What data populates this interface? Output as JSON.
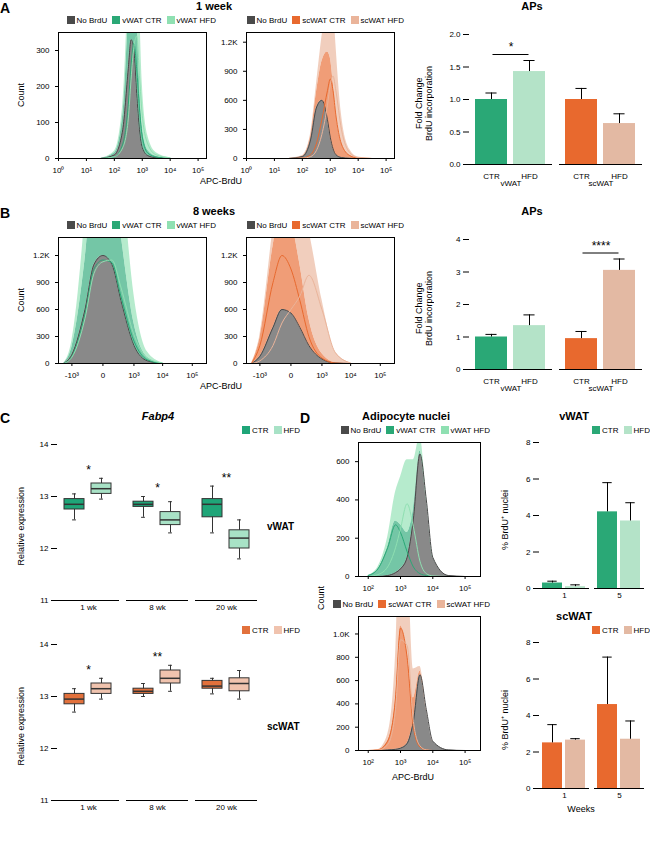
{
  "panels": [
    {
      "label": "A",
      "title": "1 week",
      "xlabel": "APC-BrdU",
      "ylabel": "Count"
    },
    {
      "label": "B",
      "title": "8 weeks",
      "xlabel": "APC-BrdU",
      "ylabel": "Count"
    },
    {
      "label": "C",
      "title": "Fabp4"
    },
    {
      "label": "D",
      "title": "Adipocyte nuclei",
      "xlabel": "APC-BrdU",
      "ylabel": "Count"
    }
  ],
  "chart_data": [
    {
      "panel": "A",
      "type": "area",
      "log": "x",
      "legend": "top-right",
      "x": [
        32,
        100,
        200,
        316,
        398,
        501,
        631,
        794,
        1000,
        1585,
        3162,
        10000
      ],
      "xlim": [
        1,
        200000
      ],
      "xticks": [
        {
          "value": 1,
          "label": "10⁰"
        },
        {
          "value": 10,
          "label": "10¹"
        },
        {
          "value": 100,
          "label": "10²"
        },
        {
          "value": 1000,
          "label": "10³"
        },
        {
          "value": 10000,
          "label": "10⁴"
        },
        {
          "value": 100000,
          "label": "10⁵"
        }
      ],
      "ylim": [
        0,
        350
      ],
      "yticks": [
        0,
        100,
        200,
        300
      ],
      "series": [
        {
          "name": "No BrdU",
          "color": "#4a4a4a",
          "values": [
            0,
            10,
            80,
            250,
            330,
            300,
            180,
            80,
            30,
            8,
            2,
            0
          ]
        },
        {
          "name": "vWAT CTR",
          "color": "#2aa876",
          "values": [
            0,
            5,
            40,
            150,
            260,
            320,
            250,
            140,
            60,
            15,
            4,
            0
          ]
        },
        {
          "name": "vWAT HFD",
          "color": "#8fe0b2",
          "values": [
            0,
            5,
            30,
            110,
            220,
            310,
            340,
            230,
            120,
            40,
            10,
            2
          ]
        }
      ]
    },
    {
      "panel": "A",
      "type": "area",
      "log": "x",
      "legend": "top-right",
      "x": [
        32,
        100,
        200,
        316,
        501,
        794,
        1000,
        1259,
        1585,
        2512,
        5012,
        10000,
        31623
      ],
      "xlim": [
        1,
        200000
      ],
      "xticks": [
        {
          "value": 1,
          "label": "10⁰"
        },
        {
          "value": 10,
          "label": "10¹"
        },
        {
          "value": 100,
          "label": "10²"
        },
        {
          "value": 1000,
          "label": "10³"
        },
        {
          "value": 10000,
          "label": "10⁴"
        },
        {
          "value": 100000,
          "label": "10⁵"
        }
      ],
      "ylim": [
        0,
        1300
      ],
      "yticks": [
        0,
        300,
        600,
        900,
        {
          "value": 1200,
          "label": "1.2K"
        }
      ],
      "series": [
        {
          "name": "No BrdU",
          "color": "#4a4a4a",
          "values": [
            0,
            20,
            200,
            520,
            600,
            400,
            220,
            100,
            40,
            10,
            2,
            0,
            0
          ]
        },
        {
          "name": "scWAT CTR",
          "color": "#e8692e",
          "values": [
            0,
            5,
            40,
            150,
            400,
            700,
            820,
            700,
            450,
            150,
            30,
            5,
            0
          ]
        },
        {
          "name": "scWAT HFD",
          "color": "#eab49a",
          "values": [
            0,
            3,
            20,
            80,
            250,
            550,
            760,
            850,
            700,
            300,
            60,
            10,
            0
          ]
        }
      ]
    },
    {
      "panel": "A",
      "type": "bar",
      "title": "APs",
      "ylabel": "Fold Change\nBrdU incorporation",
      "categories": [
        "CTR",
        "HFD",
        "CTR",
        "HFD"
      ],
      "groups": [
        "vWAT",
        "vWAT",
        "scWAT",
        "scWAT"
      ],
      "values": [
        1.0,
        1.43,
        1.0,
        0.63
      ],
      "errors": [
        0.1,
        0.17,
        0.17,
        0.15
      ],
      "colors": [
        "#2aa876",
        "#b4e3c8",
        "#e8692e",
        "#e3b9a3"
      ],
      "ylim": [
        0,
        2
      ],
      "yticks": [
        {
          "value": 0,
          "label": "0.0"
        },
        {
          "value": 0.5,
          "label": "0.5"
        },
        {
          "value": 1,
          "label": "1.0"
        },
        {
          "value": 1.5,
          "label": "1.5"
        },
        {
          "value": 2,
          "label": "2.0"
        }
      ],
      "annotations": [
        {
          "group": "vWAT",
          "text": "*"
        }
      ]
    },
    {
      "panel": "B",
      "type": "area",
      "log": "x",
      "legend": "top-right",
      "x": [
        -2000,
        -1000,
        -300,
        -100,
        0,
        100,
        300,
        1000,
        3000,
        10000
      ],
      "xlim": [
        -3000,
        300000
      ],
      "xticks": [
        {
          "value": -1000,
          "label": "-10³"
        },
        0,
        {
          "value": 1000,
          "label": "10³"
        },
        {
          "value": 10000,
          "label": "10⁴"
        },
        {
          "value": 100000,
          "label": "10⁵"
        }
      ],
      "ylim": [
        0,
        1400
      ],
      "yticks": [
        0,
        300,
        600,
        900,
        {
          "value": 1200,
          "label": "1.2K"
        }
      ],
      "series": [
        {
          "name": "No BrdU",
          "color": "#4a4a4a",
          "values": [
            0,
            100,
            600,
            1100,
            1200,
            1100,
            700,
            200,
            30,
            0
          ]
        },
        {
          "name": "vWAT CTR",
          "color": "#2aa876",
          "values": [
            0,
            80,
            550,
            1050,
            1150,
            1120,
            750,
            250,
            40,
            0
          ]
        },
        {
          "name": "vWAT HFD",
          "color": "#8fe0b2",
          "values": [
            0,
            70,
            500,
            1000,
            1130,
            1150,
            850,
            320,
            60,
            5
          ]
        }
      ]
    },
    {
      "panel": "B",
      "type": "area",
      "log": "x",
      "legend": "top-right",
      "x": [
        -2000,
        -1000,
        -300,
        -100,
        0,
        100,
        300,
        1000,
        3000,
        10000
      ],
      "xlim": [
        -3000,
        300000
      ],
      "xticks": [
        {
          "value": -1000,
          "label": "-10³"
        },
        0,
        {
          "value": 1000,
          "label": "10³"
        },
        {
          "value": 10000,
          "label": "10⁴"
        },
        {
          "value": 100000,
          "label": "10⁵"
        }
      ],
      "ylim": [
        0,
        1400
      ],
      "yticks": [
        0,
        300,
        600,
        900,
        {
          "value": 1200,
          "label": "1.2K"
        }
      ],
      "series": [
        {
          "name": "No BrdU",
          "color": "#4a4a4a",
          "values": [
            0,
            80,
            400,
            600,
            560,
            400,
            200,
            50,
            5,
            0
          ]
        },
        {
          "name": "scWAT CTR",
          "color": "#e8692e",
          "values": [
            0,
            200,
            900,
            1200,
            1050,
            700,
            300,
            60,
            5,
            0
          ]
        },
        {
          "name": "scWAT HFD",
          "color": "#eab49a",
          "values": [
            0,
            30,
            200,
            450,
            600,
            750,
            980,
            600,
            120,
            5
          ]
        }
      ]
    },
    {
      "panel": "B",
      "type": "bar",
      "title": "APs",
      "ylabel": "Fold Change\nBrdU incorporation",
      "categories": [
        "CTR",
        "HFD",
        "CTR",
        "HFD"
      ],
      "groups": [
        "vWAT",
        "vWAT",
        "scWAT",
        "scWAT"
      ],
      "values": [
        1.0,
        1.35,
        0.95,
        3.05
      ],
      "errors": [
        0.08,
        0.33,
        0.22,
        0.35
      ],
      "colors": [
        "#2aa876",
        "#b4e3c8",
        "#e8692e",
        "#e3b9a3"
      ],
      "ylim": [
        0,
        4
      ],
      "yticks": [
        0,
        1,
        2,
        3,
        4
      ],
      "annotations": [
        {
          "group": "scWAT",
          "text": "****"
        }
      ]
    },
    {
      "panel": "C",
      "type": "box",
      "title": "vWAT",
      "ylabel": "Relative expression",
      "legend": "top-right",
      "categories": [
        "1 wk",
        "8 wk",
        "20 wk"
      ],
      "ylim": [
        11,
        14
      ],
      "yticks": [
        11,
        12,
        13,
        14
      ],
      "series": [
        {
          "name": "CTR",
          "color": "#1fa578",
          "boxes": [
            [
              12.55,
              12.75,
              12.85,
              12.95,
              13.05
            ],
            [
              12.6,
              12.8,
              12.85,
              12.9,
              13.0
            ],
            [
              12.3,
              12.6,
              12.85,
              12.95,
              13.2
            ]
          ]
        },
        {
          "name": "HFD",
          "color": "#a8e2c6",
          "boxes": [
            [
              12.95,
              13.05,
              13.15,
              13.25,
              13.35
            ],
            [
              12.3,
              12.45,
              12.55,
              12.7,
              12.9
            ],
            [
              11.8,
              12.0,
              12.2,
              12.35,
              12.55
            ]
          ]
        }
      ],
      "annotations": [
        {
          "category": "1 wk",
          "text": "*"
        },
        {
          "category": "8 wk",
          "text": "*"
        },
        {
          "category": "20 wk",
          "text": "**"
        }
      ]
    },
    {
      "panel": "C",
      "type": "box",
      "title": "scWAT",
      "ylabel": "Relative expression",
      "legend": "top-right",
      "categories": [
        "1 wk",
        "8 wk",
        "20 wk"
      ],
      "ylim": [
        11,
        14
      ],
      "yticks": [
        11,
        12,
        13,
        14
      ],
      "series": [
        {
          "name": "CTR",
          "color": "#e2713c",
          "boxes": [
            [
              12.7,
              12.85,
              12.95,
              13.05,
              13.15
            ],
            [
              13.0,
              13.05,
              13.1,
              13.15,
              13.25
            ],
            [
              13.05,
              13.15,
              13.2,
              13.3,
              13.35
            ]
          ]
        },
        {
          "name": "HFD",
          "color": "#f0c3ae",
          "boxes": [
            [
              12.95,
              13.05,
              13.15,
              13.25,
              13.35
            ],
            [
              13.1,
              13.25,
              13.35,
              13.5,
              13.6
            ],
            [
              12.95,
              13.1,
              13.25,
              13.35,
              13.5
            ]
          ]
        }
      ],
      "annotations": [
        {
          "category": "1 wk",
          "text": "*"
        },
        {
          "category": "8 wk",
          "text": "**"
        }
      ]
    },
    {
      "panel": "D",
      "type": "area",
      "log": "x",
      "legend": "top-right",
      "x": [
        100,
        200,
        400,
        700,
        1000,
        1600,
        2500,
        4000,
        6300,
        10000,
        30000,
        100000
      ],
      "xlim": [
        50,
        300000
      ],
      "xticks": [
        {
          "value": 100,
          "label": "10²"
        },
        {
          "value": 1000,
          "label": "10³"
        },
        {
          "value": 10000,
          "label": "10⁴"
        },
        {
          "value": 100000,
          "label": "10⁵"
        }
      ],
      "ylim": [
        0,
        700
      ],
      "yticks": [
        0,
        200,
        400,
        600
      ],
      "series": [
        {
          "name": "No BrdU",
          "color": "#4a4a4a",
          "values": [
            0,
            0,
            5,
            20,
            40,
            100,
            300,
            640,
            400,
            100,
            5,
            0
          ]
        },
        {
          "name": "vWAT CTR",
          "color": "#2aa876",
          "values": [
            5,
            40,
            150,
            270,
            230,
            130,
            50,
            15,
            5,
            0,
            0,
            0
          ]
        },
        {
          "name": "vWAT HFD",
          "color": "#8fe0b2",
          "values": [
            0,
            10,
            50,
            150,
            250,
            380,
            260,
            80,
            15,
            3,
            0,
            0
          ]
        }
      ]
    },
    {
      "panel": "D",
      "type": "area",
      "log": "x",
      "legend": "top-right",
      "x": [
        100,
        200,
        400,
        700,
        1000,
        1600,
        2500,
        4000,
        6300,
        10000,
        30000,
        100000
      ],
      "xlim": [
        50,
        300000
      ],
      "xticks": [
        {
          "value": 100,
          "label": "10²"
        },
        {
          "value": 1000,
          "label": "10³"
        },
        {
          "value": 10000,
          "label": "10⁴"
        },
        {
          "value": 100000,
          "label": "10⁵"
        }
      ],
      "ylim": [
        0,
        1150
      ],
      "yticks": [
        0,
        200,
        400,
        600,
        800,
        {
          "value": 1000,
          "label": "1.0K"
        }
      ],
      "series": [
        {
          "name": "No BrdU",
          "color": "#4a4a4a",
          "values": [
            0,
            0,
            5,
            10,
            20,
            60,
            250,
            650,
            350,
            80,
            5,
            0
          ]
        },
        {
          "name": "scWAT CTR",
          "color": "#e8692e",
          "values": [
            0,
            5,
            80,
            450,
            1050,
            800,
            200,
            30,
            5,
            0,
            0,
            0
          ]
        },
        {
          "name": "scWAT HFD",
          "color": "#eab49a",
          "values": [
            0,
            3,
            50,
            350,
            950,
            900,
            250,
            40,
            5,
            0,
            0,
            0
          ]
        }
      ]
    },
    {
      "panel": "D",
      "type": "bar",
      "title": "vWAT",
      "ylabel": "% BrdU⁺ nuclei",
      "legend": "top-right",
      "categories": [
        "1",
        "5"
      ],
      "ylim": [
        0,
        8
      ],
      "yticks": [
        0,
        2,
        4,
        6,
        8
      ],
      "series": [
        {
          "name": "CTR",
          "color": "#2aa876",
          "values": [
            0.3,
            4.2
          ],
          "errors": [
            0.1,
            1.6
          ]
        },
        {
          "name": "HFD",
          "color": "#b4e3c8",
          "values": [
            0.1,
            3.7
          ],
          "errors": [
            0.1,
            1.0
          ]
        }
      ]
    },
    {
      "panel": "D",
      "type": "bar",
      "title": "scWAT",
      "ylabel": "% BrdU⁺ nuclei",
      "xlabel": "Weeks",
      "legend": "top-right",
      "categories": [
        "1",
        "5"
      ],
      "ylim": [
        0,
        8
      ],
      "yticks": [
        0,
        2,
        4,
        6,
        8
      ],
      "series": [
        {
          "name": "CTR",
          "color": "#e8692e",
          "values": [
            2.5,
            4.6
          ],
          "errors": [
            1.0,
            2.6
          ]
        },
        {
          "name": "HFD",
          "color": "#e3b9a3",
          "values": [
            2.65,
            2.7
          ],
          "errors": [
            0.08,
            1.0
          ]
        }
      ]
    }
  ]
}
